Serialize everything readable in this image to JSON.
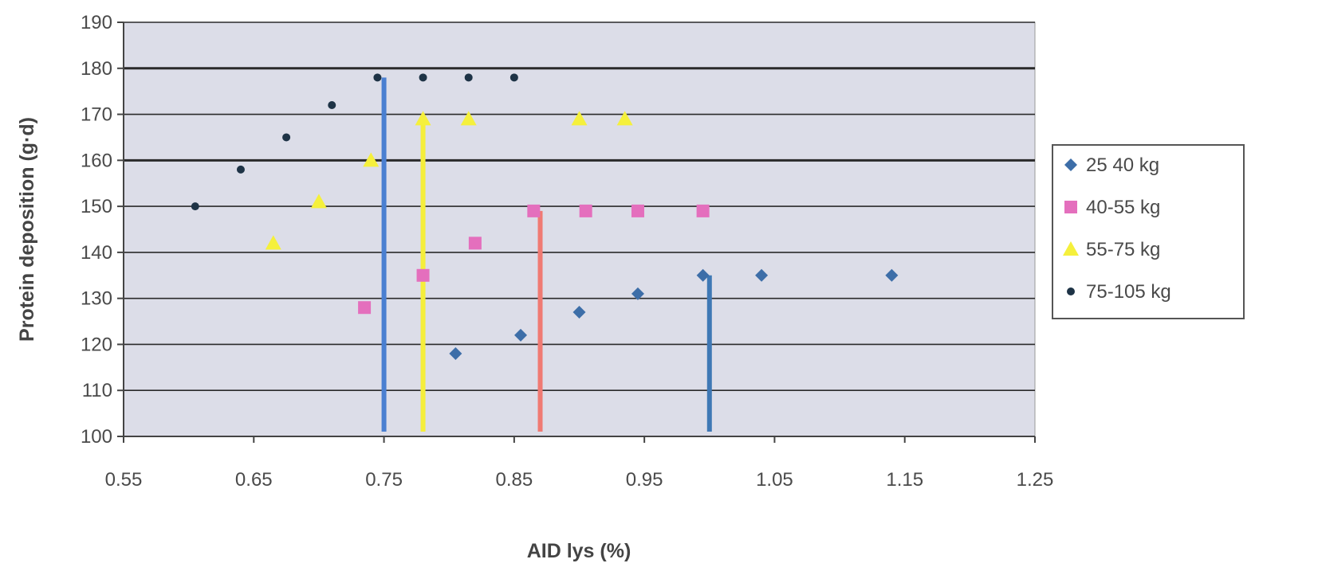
{
  "chart_data": {
    "type": "scatter",
    "xlabel": "AID lys (%)",
    "ylabel": "Protein deposition (g·d)",
    "xlim": [
      0.55,
      1.25
    ],
    "ylim": [
      100,
      190
    ],
    "xticks": [
      "0.55",
      "0.65",
      "0.75",
      "0.85",
      "0.95",
      "1.05",
      "1.15",
      "1.25"
    ],
    "yticks": [
      "100",
      "110",
      "120",
      "130",
      "140",
      "150",
      "160",
      "170",
      "180",
      "190"
    ],
    "xtick_values": [
      0.55,
      0.65,
      0.75,
      0.85,
      0.95,
      1.05,
      1.15,
      1.25
    ],
    "ytick_values": [
      100,
      110,
      120,
      130,
      140,
      150,
      160,
      170,
      180,
      190
    ],
    "grid": true,
    "legend_position": "right",
    "plot_background": "#dcdde8",
    "series": [
      {
        "name": "25  40 kg",
        "marker": "diamond",
        "color": "#3d6ea8",
        "points": [
          [
            0.805,
            118
          ],
          [
            0.855,
            122
          ],
          [
            0.9,
            127
          ],
          [
            0.945,
            131
          ],
          [
            0.995,
            135
          ],
          [
            1.04,
            135
          ],
          [
            1.14,
            135
          ]
        ],
        "vline": {
          "x": 1.0,
          "from": 100,
          "to": 135
        }
      },
      {
        "name": "40-55 kg",
        "marker": "square",
        "color": "#e46fbd",
        "points": [
          [
            0.735,
            128
          ],
          [
            0.78,
            135
          ],
          [
            0.82,
            142
          ],
          [
            0.865,
            149
          ],
          [
            0.905,
            149
          ],
          [
            0.945,
            149
          ],
          [
            0.995,
            149
          ]
        ],
        "vline": {
          "x": 0.87,
          "from": 100,
          "to": 149
        }
      },
      {
        "name": "55-75 kg",
        "marker": "triangle",
        "color": "#f5f03c",
        "points": [
          [
            0.665,
            142
          ],
          [
            0.7,
            151
          ],
          [
            0.74,
            160
          ],
          [
            0.78,
            169
          ],
          [
            0.815,
            169
          ],
          [
            0.9,
            169
          ],
          [
            0.935,
            169
          ]
        ],
        "vline": {
          "x": 0.78,
          "from": 100,
          "to": 169
        }
      },
      {
        "name": "75-105 kg",
        "marker": "dot",
        "color": "#1e3346",
        "points": [
          [
            0.605,
            150
          ],
          [
            0.64,
            158
          ],
          [
            0.675,
            165
          ],
          [
            0.71,
            172
          ],
          [
            0.745,
            178
          ],
          [
            0.78,
            178
          ],
          [
            0.815,
            178
          ],
          [
            0.85,
            178
          ]
        ],
        "vline": {
          "x": 0.75,
          "from": 100,
          "to": 178
        }
      }
    ]
  }
}
